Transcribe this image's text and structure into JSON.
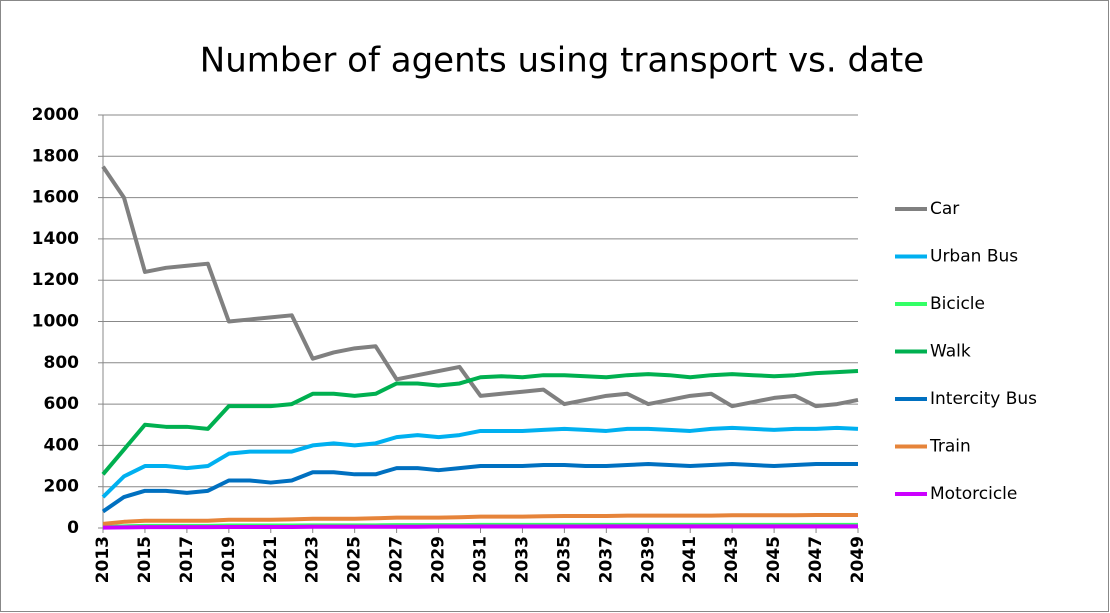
{
  "chart_data": {
    "type": "line",
    "title": "Number of agents using transport vs. date",
    "x": [
      2013,
      2014,
      2015,
      2016,
      2017,
      2018,
      2019,
      2020,
      2021,
      2022,
      2023,
      2024,
      2025,
      2026,
      2027,
      2028,
      2029,
      2030,
      2031,
      2032,
      2033,
      2034,
      2035,
      2036,
      2037,
      2038,
      2039,
      2040,
      2041,
      2042,
      2043,
      2044,
      2045,
      2046,
      2047,
      2048,
      2049
    ],
    "xlim": [
      2013,
      2049
    ],
    "xticks": [
      2013,
      2015,
      2017,
      2019,
      2021,
      2023,
      2025,
      2027,
      2029,
      2031,
      2033,
      2035,
      2037,
      2039,
      2041,
      2043,
      2045,
      2047,
      2049
    ],
    "ylim": [
      0,
      2000
    ],
    "yticks": [
      0,
      200,
      400,
      600,
      800,
      1000,
      1200,
      1400,
      1600,
      1800,
      2000
    ],
    "grid": true,
    "legend": "right",
    "series": [
      {
        "name": "Car",
        "color": "#808080",
        "values": [
          1750,
          1600,
          1240,
          1260,
          1270,
          1280,
          1000,
          1010,
          1020,
          1030,
          820,
          850,
          870,
          880,
          720,
          740,
          760,
          780,
          640,
          650,
          660,
          670,
          600,
          620,
          640,
          650,
          600,
          620,
          640,
          650,
          590,
          610,
          630,
          640,
          590,
          600,
          620
        ]
      },
      {
        "name": "Urban Bus",
        "color": "#00b0f0",
        "values": [
          150,
          250,
          300,
          300,
          290,
          300,
          360,
          370,
          370,
          370,
          400,
          410,
          400,
          410,
          440,
          450,
          440,
          450,
          470,
          470,
          470,
          475,
          480,
          475,
          470,
          480,
          480,
          475,
          470,
          480,
          485,
          480,
          475,
          480,
          480,
          485,
          480
        ]
      },
      {
        "name": "Bicicle",
        "color": "#33ff66",
        "values": [
          5,
          8,
          10,
          10,
          10,
          10,
          12,
          12,
          12,
          12,
          13,
          13,
          13,
          13,
          14,
          14,
          14,
          14,
          15,
          15,
          15,
          15,
          15,
          15,
          15,
          15,
          15,
          15,
          15,
          15,
          15,
          15,
          15,
          15,
          15,
          15,
          15
        ]
      },
      {
        "name": "Walk",
        "color": "#00b050",
        "values": [
          260,
          380,
          500,
          490,
          490,
          480,
          590,
          590,
          590,
          600,
          650,
          650,
          640,
          650,
          700,
          700,
          690,
          700,
          730,
          735,
          730,
          740,
          740,
          735,
          730,
          740,
          745,
          740,
          730,
          740,
          745,
          740,
          735,
          740,
          750,
          755,
          760
        ]
      },
      {
        "name": "Intercity Bus",
        "color": "#0070c0",
        "values": [
          80,
          150,
          180,
          180,
          170,
          180,
          230,
          230,
          220,
          230,
          270,
          270,
          260,
          260,
          290,
          290,
          280,
          290,
          300,
          300,
          300,
          305,
          305,
          300,
          300,
          305,
          310,
          305,
          300,
          305,
          310,
          305,
          300,
          305,
          310,
          310,
          310
        ]
      },
      {
        "name": "Train",
        "color": "#e6843a",
        "values": [
          20,
          30,
          35,
          35,
          35,
          35,
          40,
          40,
          40,
          42,
          45,
          45,
          45,
          47,
          50,
          50,
          50,
          52,
          55,
          55,
          55,
          57,
          58,
          58,
          58,
          60,
          60,
          60,
          60,
          60,
          62,
          62,
          62,
          62,
          63,
          63,
          63
        ]
      },
      {
        "name": "Motorcicle",
        "color": "#cc00ff",
        "values": [
          2,
          3,
          4,
          4,
          4,
          4,
          5,
          5,
          5,
          5,
          6,
          6,
          6,
          6,
          6,
          6,
          7,
          7,
          7,
          7,
          7,
          7,
          7,
          7,
          8,
          8,
          8,
          8,
          8,
          8,
          8,
          8,
          8,
          8,
          8,
          8,
          8
        ]
      }
    ]
  }
}
